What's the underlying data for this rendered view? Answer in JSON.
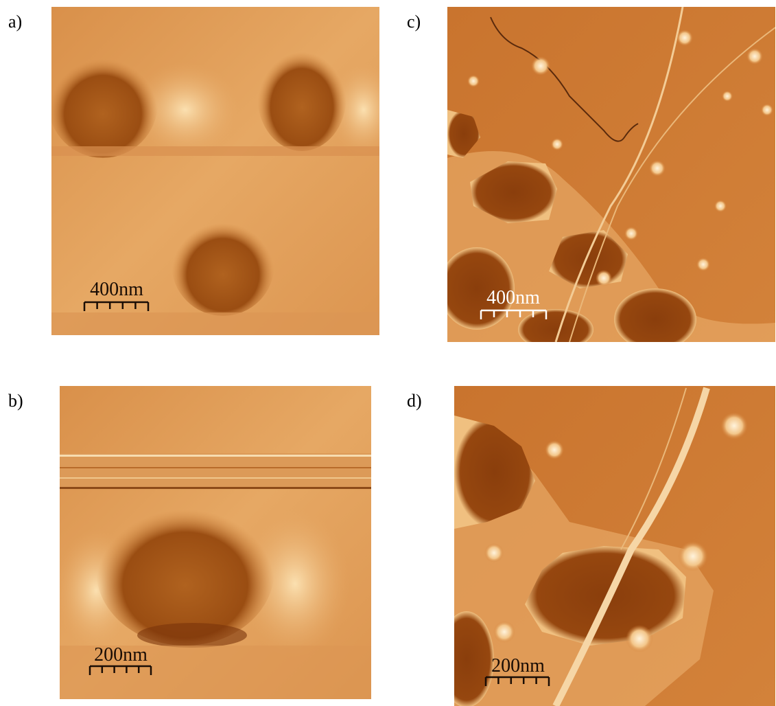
{
  "panels": [
    {
      "label": "a)",
      "scale_bar": "400nm"
    },
    {
      "label": "b)",
      "scale_bar": "200nm"
    },
    {
      "label": "c)",
      "scale_bar": "400nm"
    },
    {
      "label": "d)",
      "scale_bar": "200nm"
    }
  ]
}
